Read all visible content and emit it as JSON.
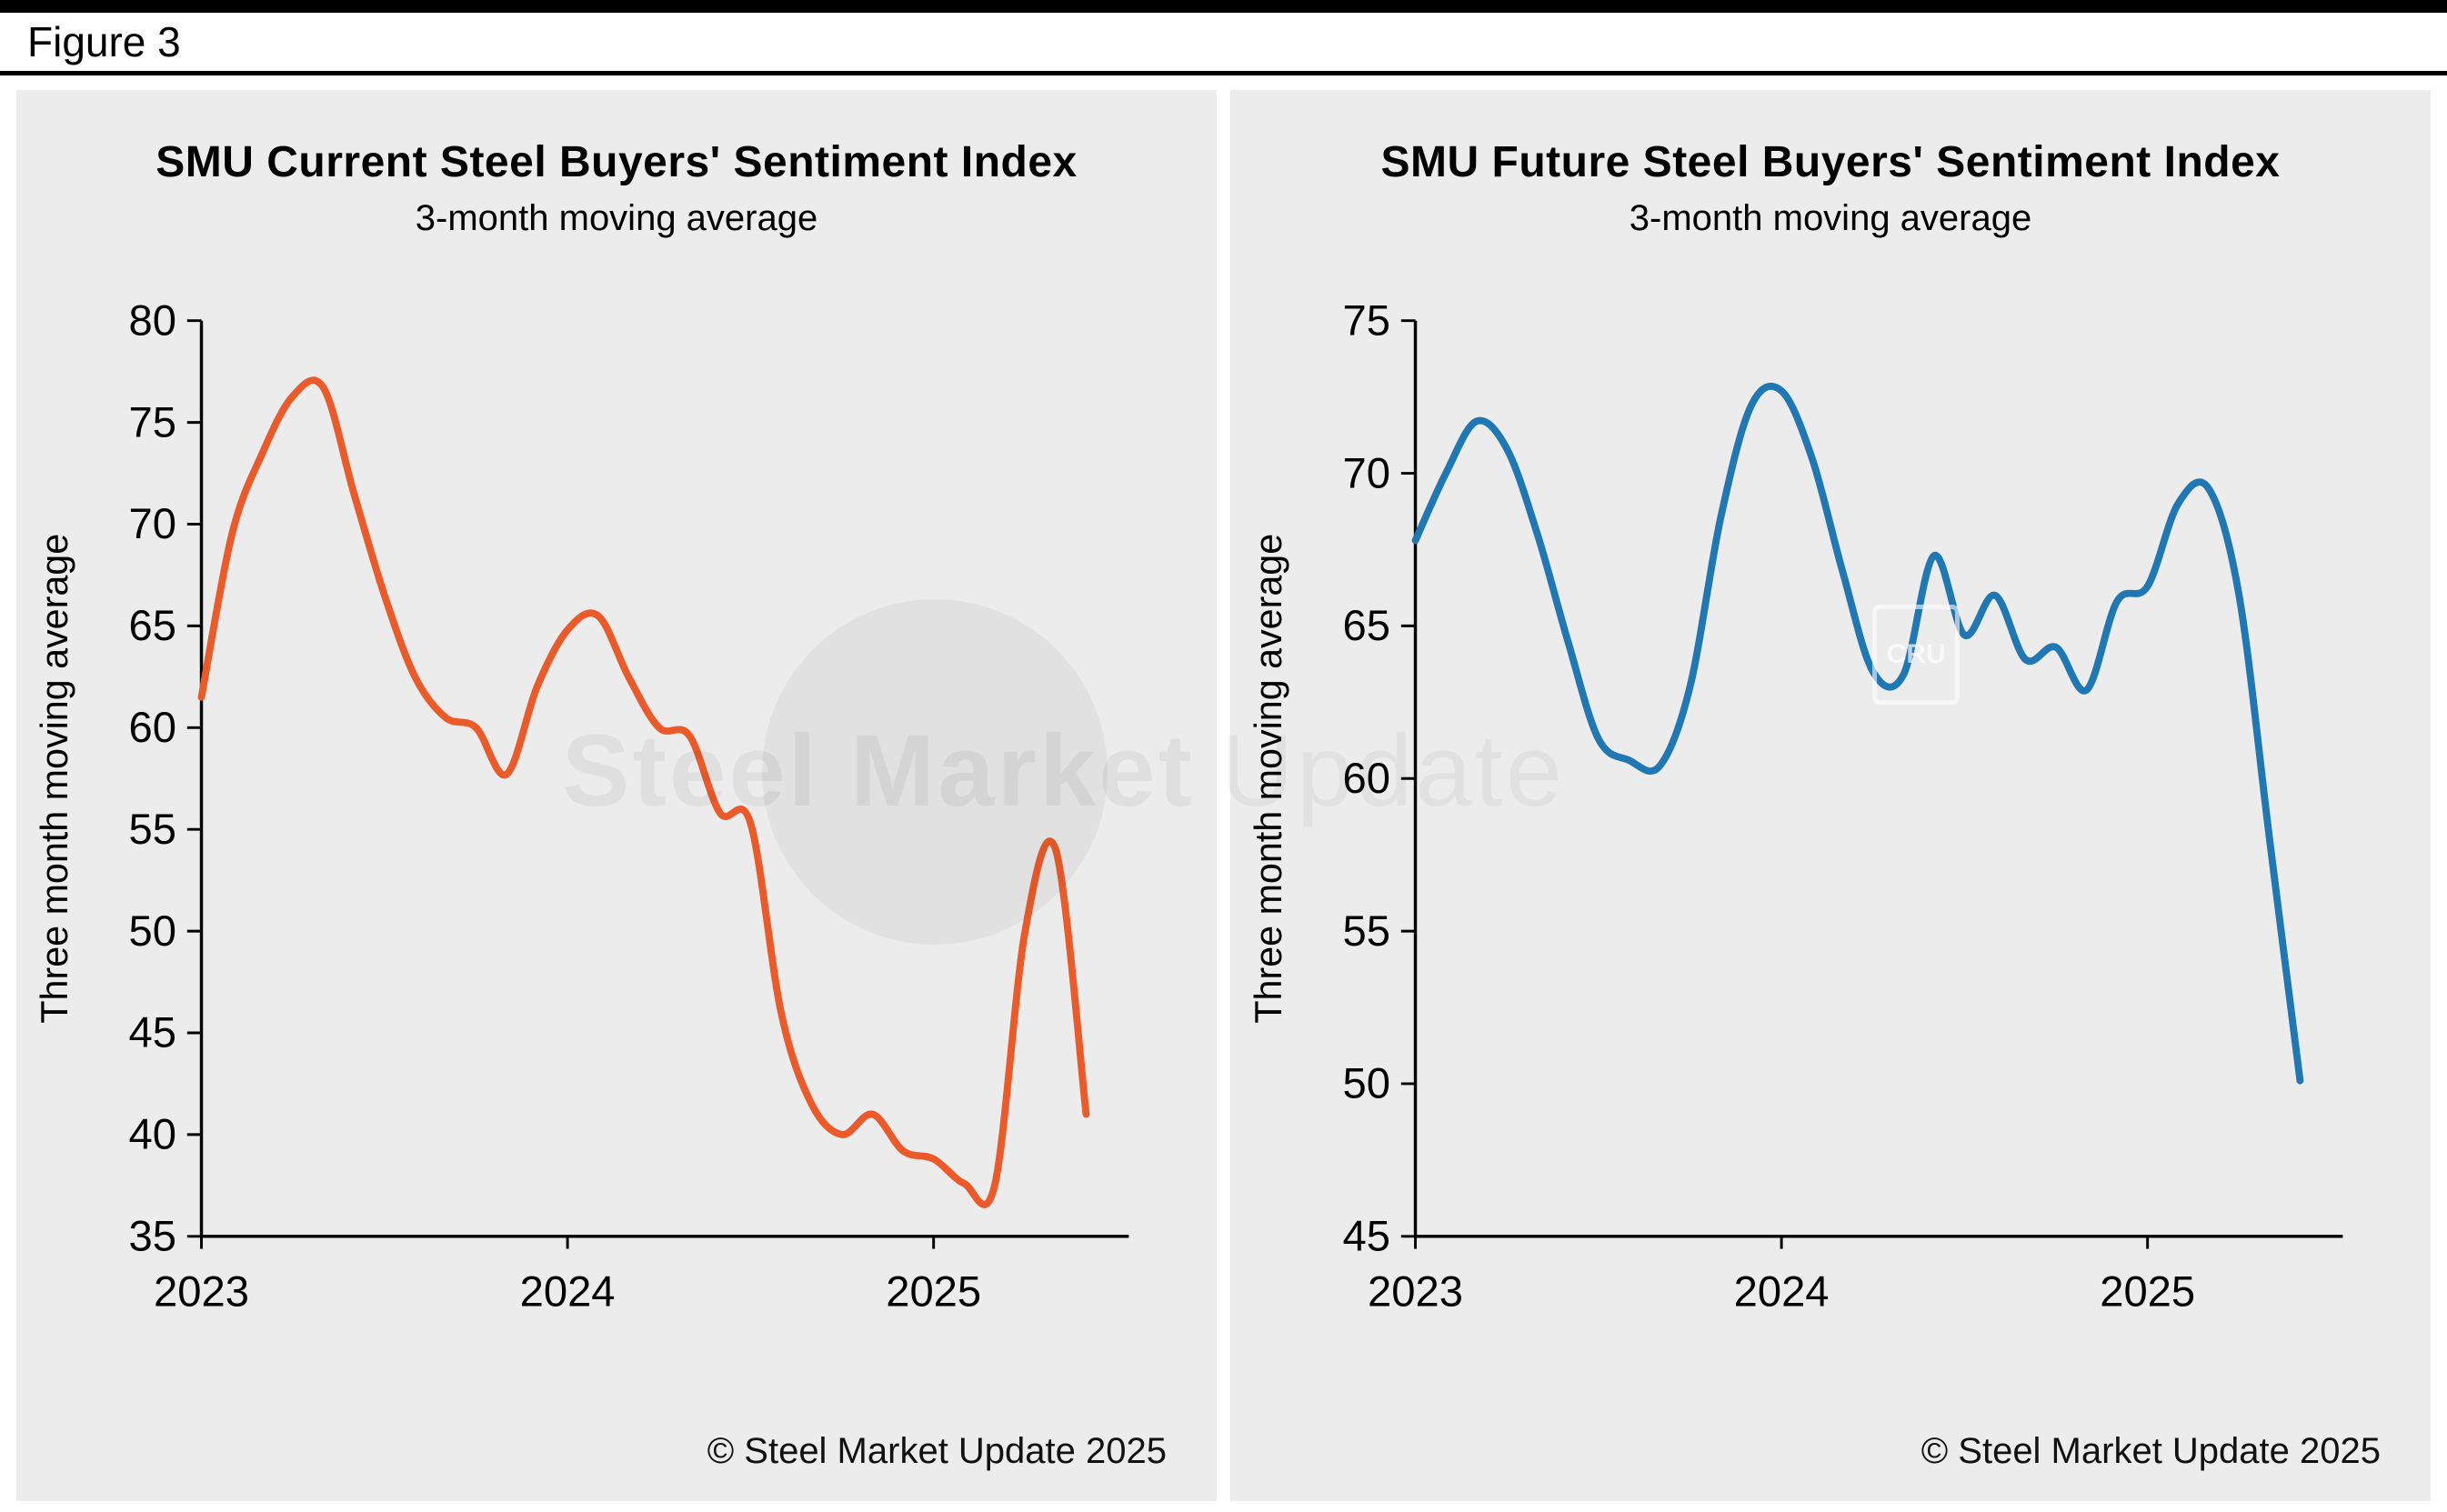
{
  "figure_label": "Figure 3",
  "watermark": {
    "text_bold": "Steel Market",
    "text_light": "Update",
    "cru_label": "CRU"
  },
  "chart_data": [
    {
      "id": "current-sentiment",
      "type": "line",
      "title": "SMU Current Steel Buyers' Sentiment Index",
      "subtitle": "3-month moving average",
      "ylabel": "Three month moving average",
      "copyright": "© Steel Market Update 2025",
      "color": "#ED5A29",
      "ylim": [
        35,
        80
      ],
      "ytick_step": 5,
      "xlim_months": [
        0,
        30.4
      ],
      "xticks": [
        {
          "month": 0,
          "label": "2023"
        },
        {
          "month": 12,
          "label": "2024"
        },
        {
          "month": 24,
          "label": "2025"
        }
      ],
      "x": [
        "2023-01",
        "2023-02",
        "2023-03",
        "2023-04",
        "2023-05",
        "2023-06",
        "2023-07",
        "2023-08",
        "2023-09",
        "2023-10",
        "2023-11",
        "2023-12",
        "2024-01",
        "2024-02",
        "2024-03",
        "2024-04",
        "2024-05",
        "2024-06",
        "2024-07",
        "2024-08",
        "2024-09",
        "2024-10",
        "2024-11",
        "2024-12",
        "2025-01",
        "2025-02",
        "2025-03",
        "2025-04",
        "2025-05",
        "2025-06"
      ],
      "values": [
        61.5,
        69.5,
        73.5,
        76.3,
        76.7,
        71.5,
        66.5,
        62.5,
        60.5,
        60.0,
        57.7,
        62.0,
        64.8,
        65.5,
        62.5,
        60.0,
        59.6,
        55.8,
        55.3,
        46.0,
        41.5,
        40.0,
        41.0,
        39.2,
        38.8,
        37.6,
        37.5,
        50.0,
        54.0,
        41.0
      ]
    },
    {
      "id": "future-sentiment",
      "type": "line",
      "title": "SMU Future Steel Buyers' Sentiment Index",
      "subtitle": "3-month moving average",
      "ylabel": "Three month moving average",
      "copyright": "© Steel Market Update 2025",
      "color": "#1F77B4",
      "ylim": [
        45,
        75
      ],
      "ytick_step": 5,
      "xlim_months": [
        0,
        30.4
      ],
      "xticks": [
        {
          "month": 0,
          "label": "2023"
        },
        {
          "month": 12,
          "label": "2024"
        },
        {
          "month": 24,
          "label": "2025"
        }
      ],
      "x": [
        "2023-01",
        "2023-02",
        "2023-03",
        "2023-04",
        "2023-05",
        "2023-06",
        "2023-07",
        "2023-08",
        "2023-09",
        "2023-10",
        "2023-11",
        "2023-12",
        "2024-01",
        "2024-02",
        "2024-03",
        "2024-04",
        "2024-05",
        "2024-06",
        "2024-07",
        "2024-08",
        "2024-09",
        "2024-10",
        "2024-11",
        "2024-12",
        "2025-01",
        "2025-02",
        "2025-03",
        "2025-04",
        "2025-05",
        "2025-06"
      ],
      "values": [
        67.8,
        70.0,
        71.7,
        70.8,
        68.0,
        64.5,
        61.3,
        60.6,
        60.4,
        63.0,
        68.5,
        72.2,
        72.7,
        70.5,
        66.8,
        63.5,
        63.4,
        67.3,
        64.7,
        66.0,
        63.9,
        64.3,
        62.9,
        65.8,
        66.3,
        69.0,
        69.5,
        66.0,
        58.0,
        50.1
      ]
    }
  ]
}
